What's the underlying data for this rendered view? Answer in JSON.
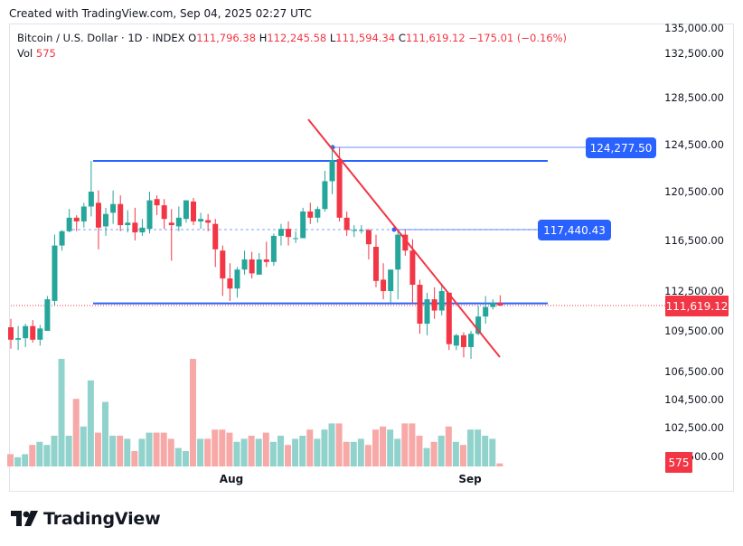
{
  "header": {
    "created": "Created with TradingView.com, Sep 04, 2025 02:27 UTC"
  },
  "legend": {
    "symbol": "Bitcoin / U.S. Dollar · 1D · INDEX",
    "o_label": "O",
    "o": "111,796.38",
    "h_label": "H",
    "h": "112,245.58",
    "l_label": "L",
    "l": "111,594.34",
    "c_label": "C",
    "c": "111,619.12",
    "change": "−175.01 (−0.16%)",
    "vol_label": "Vol",
    "vol": "575"
  },
  "brand": {
    "name": "TradingView",
    "icon": "tradingview-logo-icon"
  },
  "colors": {
    "up": "#26a69a",
    "down": "#f23645",
    "vol_up": "#92d2cc",
    "vol_down": "#f7a9a7",
    "line_blue": "#2962ff",
    "trend_red": "#f23645"
  },
  "chart_data": {
    "type": "candlestick",
    "title": "Bitcoin / U.S. Dollar · 1D · INDEX",
    "y_ticks": [
      "135,000.00",
      "132,500.00",
      "128,500.00",
      "124,500.00",
      "120,500.00",
      "116,500.00",
      "112,500.00",
      "109,500.00",
      "106,500.00",
      "104,500.00",
      "102,500.00",
      "500.00"
    ],
    "x_ticks": [
      "Aug",
      "Sep"
    ],
    "price_labels": {
      "level_high": "124,277.50",
      "level_mid": "117,440.43",
      "last": "111,619.12",
      "vol_last": "575"
    },
    "horizontal_levels": [
      123150,
      117440,
      124277.5,
      111750
    ],
    "trendline": {
      "from": [
        "Aug 13",
        125400
      ],
      "to": [
        "Sep 4",
        108100
      ]
    },
    "candles": [
      {
        "o": 109800,
        "h": 110500,
        "l": 108300,
        "c": 108900
      },
      {
        "o": 108900,
        "h": 109900,
        "l": 108200,
        "c": 109000
      },
      {
        "o": 109000,
        "h": 110100,
        "l": 108400,
        "c": 109900
      },
      {
        "o": 109900,
        "h": 110400,
        "l": 108700,
        "c": 108900
      },
      {
        "o": 108900,
        "h": 110000,
        "l": 108500,
        "c": 109700
      },
      {
        "o": 109500,
        "h": 112200,
        "l": 109500,
        "c": 112000
      },
      {
        "o": 111900,
        "h": 117000,
        "l": 111600,
        "c": 116100
      },
      {
        "o": 116100,
        "h": 117400,
        "l": 115700,
        "c": 117300
      },
      {
        "o": 117300,
        "h": 119100,
        "l": 117200,
        "c": 118400
      },
      {
        "o": 118400,
        "h": 118600,
        "l": 117300,
        "c": 118100
      },
      {
        "o": 118100,
        "h": 119600,
        "l": 117600,
        "c": 119300
      },
      {
        "o": 119300,
        "h": 123150,
        "l": 118500,
        "c": 120500
      },
      {
        "o": 119600,
        "h": 120600,
        "l": 115800,
        "c": 117600
      },
      {
        "o": 117700,
        "h": 119200,
        "l": 116900,
        "c": 118700
      },
      {
        "o": 118800,
        "h": 120600,
        "l": 117900,
        "c": 119500
      },
      {
        "o": 119500,
        "h": 120200,
        "l": 117300,
        "c": 117800
      },
      {
        "o": 117800,
        "h": 119000,
        "l": 117200,
        "c": 118000
      },
      {
        "o": 118000,
        "h": 119200,
        "l": 116500,
        "c": 117200
      },
      {
        "o": 117200,
        "h": 118300,
        "l": 116900,
        "c": 117600
      },
      {
        "o": 117500,
        "h": 120500,
        "l": 117100,
        "c": 119800
      },
      {
        "o": 119900,
        "h": 120200,
        "l": 118600,
        "c": 119400
      },
      {
        "o": 119400,
        "h": 119900,
        "l": 117500,
        "c": 118300
      },
      {
        "o": 118000,
        "h": 119100,
        "l": 114900,
        "c": 117800
      },
      {
        "o": 117700,
        "h": 119300,
        "l": 117300,
        "c": 118400
      },
      {
        "o": 118300,
        "h": 119800,
        "l": 118000,
        "c": 119800
      },
      {
        "o": 119700,
        "h": 120000,
        "l": 117800,
        "c": 118100
      },
      {
        "o": 118100,
        "h": 118800,
        "l": 117500,
        "c": 118300
      },
      {
        "o": 118200,
        "h": 118700,
        "l": 117300,
        "c": 118000
      },
      {
        "o": 117900,
        "h": 118300,
        "l": 114400,
        "c": 115800
      },
      {
        "o": 115700,
        "h": 116100,
        "l": 112200,
        "c": 113500
      },
      {
        "o": 113500,
        "h": 114700,
        "l": 111900,
        "c": 112700
      },
      {
        "o": 112700,
        "h": 114400,
        "l": 112100,
        "c": 114200
      },
      {
        "o": 114200,
        "h": 115700,
        "l": 113800,
        "c": 115000
      },
      {
        "o": 115000,
        "h": 115600,
        "l": 113500,
        "c": 113900
      },
      {
        "o": 113800,
        "h": 115500,
        "l": 113800,
        "c": 115000
      },
      {
        "o": 115000,
        "h": 116400,
        "l": 114400,
        "c": 114800
      },
      {
        "o": 114800,
        "h": 117100,
        "l": 114500,
        "c": 116900
      },
      {
        "o": 116900,
        "h": 117900,
        "l": 116100,
        "c": 117500
      },
      {
        "o": 117500,
        "h": 118100,
        "l": 116100,
        "c": 116800
      },
      {
        "o": 116700,
        "h": 117300,
        "l": 116300,
        "c": 116700
      },
      {
        "o": 116700,
        "h": 119200,
        "l": 116700,
        "c": 118900
      },
      {
        "o": 118900,
        "h": 119600,
        "l": 117900,
        "c": 118400
      },
      {
        "o": 118400,
        "h": 119300,
        "l": 118000,
        "c": 119100
      },
      {
        "o": 119100,
        "h": 122300,
        "l": 118900,
        "c": 121400
      },
      {
        "o": 121400,
        "h": 124500,
        "l": 120300,
        "c": 123200
      },
      {
        "o": 123300,
        "h": 124277.5,
        "l": 118100,
        "c": 118400
      },
      {
        "o": 118400,
        "h": 118900,
        "l": 116900,
        "c": 117400
      },
      {
        "o": 117400,
        "h": 117800,
        "l": 116800,
        "c": 117400
      },
      {
        "o": 117400,
        "h": 117800,
        "l": 117100,
        "c": 117400
      },
      {
        "o": 117400,
        "h": 117500,
        "l": 115000,
        "c": 116200
      },
      {
        "o": 116000,
        "h": 117000,
        "l": 112800,
        "c": 113300
      },
      {
        "o": 113400,
        "h": 114700,
        "l": 112000,
        "c": 112500
      },
      {
        "o": 112500,
        "h": 114200,
        "l": 111800,
        "c": 114200
      },
      {
        "o": 114200,
        "h": 117440,
        "l": 112000,
        "c": 117000
      },
      {
        "o": 117000,
        "h": 117400,
        "l": 115300,
        "c": 115700
      },
      {
        "o": 115700,
        "h": 116600,
        "l": 111700,
        "c": 113000
      },
      {
        "o": 113000,
        "h": 113400,
        "l": 109300,
        "c": 110100
      },
      {
        "o": 110100,
        "h": 112400,
        "l": 109200,
        "c": 112000
      },
      {
        "o": 112000,
        "h": 112800,
        "l": 110500,
        "c": 111200
      },
      {
        "o": 111200,
        "h": 113100,
        "l": 110800,
        "c": 112500
      },
      {
        "o": 112400,
        "h": 112400,
        "l": 108200,
        "c": 108600
      },
      {
        "o": 108500,
        "h": 109300,
        "l": 108200,
        "c": 109200
      },
      {
        "o": 109200,
        "h": 109400,
        "l": 107700,
        "c": 108400
      },
      {
        "o": 108400,
        "h": 109500,
        "l": 107600,
        "c": 109300
      },
      {
        "o": 109300,
        "h": 111600,
        "l": 109200,
        "c": 110700
      },
      {
        "o": 110700,
        "h": 112200,
        "l": 110100,
        "c": 111500
      },
      {
        "o": 111500,
        "h": 112000,
        "l": 111300,
        "c": 111800
      },
      {
        "o": 111796.38,
        "h": 112245.58,
        "l": 111594.34,
        "c": 111619.12
      }
    ],
    "volume": [
      4,
      3,
      4,
      7,
      8,
      7,
      10,
      18,
      10,
      22,
      13,
      28,
      11,
      21,
      10,
      10,
      9,
      5,
      9,
      11,
      11,
      11,
      9,
      6,
      5,
      10,
      9,
      9,
      12,
      12,
      11,
      8,
      9,
      10,
      9,
      11,
      8,
      10,
      7,
      9,
      10,
      12,
      9,
      12,
      14,
      14,
      8,
      8,
      9,
      7,
      12,
      13,
      12,
      9,
      14,
      14,
      10,
      6,
      8,
      10,
      13,
      8,
      7,
      12,
      12,
      10,
      9,
      1
    ],
    "volume_spikes": {
      "7": 35,
      "25": 35
    }
  }
}
